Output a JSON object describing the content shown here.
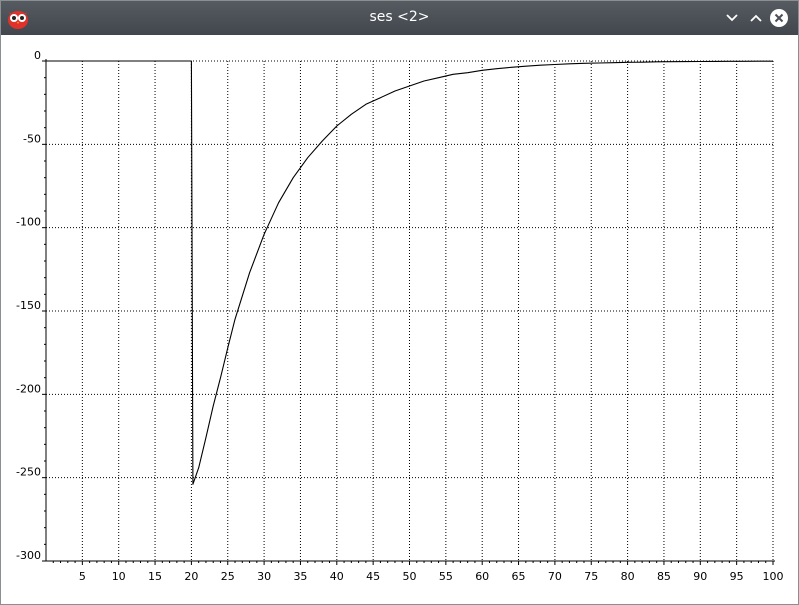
{
  "window": {
    "title": "ses <2>",
    "titlebar_color": "#4b5056",
    "icons": {
      "app": "owl-app-icon",
      "minimize": "chevron-down-icon",
      "maximize": "chevron-up-icon",
      "close": "close-icon"
    }
  },
  "chart_data": {
    "type": "line",
    "title": "",
    "xlabel": "",
    "ylabel": "",
    "xlim": [
      0,
      100
    ],
    "ylim": [
      -300,
      0
    ],
    "grid": true,
    "grid_style": "dotted",
    "legend": "none",
    "x_ticks": [
      5,
      10,
      15,
      20,
      25,
      30,
      35,
      40,
      45,
      50,
      55,
      60,
      65,
      70,
      75,
      80,
      85,
      90,
      95,
      100
    ],
    "x_tick_labels": [
      "5",
      "10",
      "15",
      "20",
      "25",
      "30",
      "35",
      "40",
      "45",
      "50",
      "55",
      "60",
      "65",
      "70",
      "75",
      "80",
      "85",
      "90",
      "95",
      "100"
    ],
    "y_ticks": [
      0,
      -50,
      -100,
      -150,
      -200,
      -250,
      -300
    ],
    "y_tick_labels": [
      "0",
      "-50",
      "-100",
      "-150",
      "-200",
      "-250",
      "-300"
    ],
    "series": [
      {
        "color": "#000000",
        "x": [
          0,
          20,
          20.2,
          21,
          22,
          23,
          24,
          25,
          26,
          28,
          30,
          32,
          34,
          36,
          38,
          40,
          42,
          44,
          46,
          48,
          50,
          52,
          54,
          56,
          58,
          60,
          62,
          64,
          66,
          68,
          70,
          72,
          74,
          76,
          78,
          80,
          82,
          84,
          86,
          88,
          90,
          92,
          94,
          96,
          98,
          100
        ],
        "y": [
          0,
          0,
          -254,
          -244,
          -226,
          -207,
          -190,
          -172,
          -155,
          -127,
          -104,
          -85,
          -70,
          -58,
          -48,
          -39,
          -32,
          -26,
          -22,
          -18,
          -15,
          -12,
          -10,
          -8,
          -7,
          -5.6,
          -4.6,
          -3.8,
          -3.1,
          -2.5,
          -2.1,
          -1.7,
          -1.4,
          -1.2,
          -1.0,
          -0.8,
          -0.7,
          -0.5,
          -0.4,
          -0.35,
          -0.3,
          -0.25,
          -0.2,
          -0.15,
          -0.12,
          -0.1
        ]
      }
    ]
  }
}
